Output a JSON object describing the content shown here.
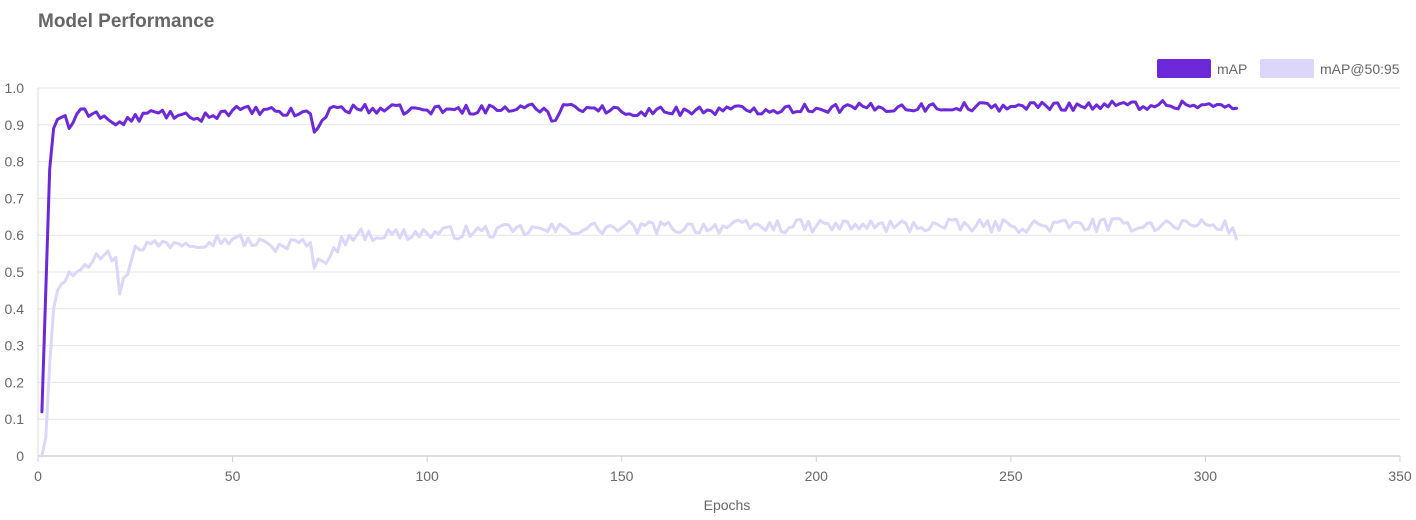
{
  "title": "Model Performance",
  "chart_data": {
    "type": "line",
    "title": "Model Performance",
    "xlabel": "Epochs",
    "ylabel": "",
    "xlim": [
      0,
      350
    ],
    "ylim": [
      0,
      1.0
    ],
    "x_ticks": [
      "0",
      "50",
      "100",
      "150",
      "200",
      "250",
      "300",
      "350"
    ],
    "y_ticks": [
      "0",
      "0.1",
      "0.2",
      "0.3",
      "0.4",
      "0.5",
      "0.6",
      "0.7",
      "0.8",
      "0.9",
      "1.0"
    ],
    "grid": true,
    "legend_position": "top-right",
    "x_start": 1,
    "x_end": 308,
    "series": [
      {
        "name": "mAP",
        "color": "#6d28d9",
        "anchors": [
          [
            1,
            0.12
          ],
          [
            2,
            0.45
          ],
          [
            3,
            0.78
          ],
          [
            4,
            0.89
          ],
          [
            5,
            0.915
          ],
          [
            6,
            0.92
          ],
          [
            7,
            0.925
          ],
          [
            8,
            0.89
          ],
          [
            10,
            0.93
          ],
          [
            15,
            0.935
          ],
          [
            20,
            0.9
          ],
          [
            30,
            0.935
          ],
          [
            40,
            0.915
          ],
          [
            50,
            0.94
          ],
          [
            70,
            0.93
          ],
          [
            71,
            0.88
          ],
          [
            75,
            0.945
          ],
          [
            100,
            0.94
          ],
          [
            130,
            0.945
          ],
          [
            132,
            0.91
          ],
          [
            135,
            0.955
          ],
          [
            150,
            0.935
          ],
          [
            200,
            0.945
          ],
          [
            250,
            0.95
          ],
          [
            295,
            0.955
          ],
          [
            300,
            0.955
          ],
          [
            308,
            0.945
          ]
        ],
        "jitter": 0.013
      },
      {
        "name": "mAP@50:95",
        "color": "#dcd6fb",
        "anchors": [
          [
            1,
            0.0
          ],
          [
            2,
            0.05
          ],
          [
            3,
            0.25
          ],
          [
            4,
            0.4
          ],
          [
            5,
            0.45
          ],
          [
            8,
            0.5
          ],
          [
            12,
            0.52
          ],
          [
            15,
            0.55
          ],
          [
            20,
            0.54
          ],
          [
            21,
            0.44
          ],
          [
            25,
            0.57
          ],
          [
            35,
            0.58
          ],
          [
            50,
            0.59
          ],
          [
            60,
            0.57
          ],
          [
            70,
            0.58
          ],
          [
            71,
            0.51
          ],
          [
            80,
            0.6
          ],
          [
            100,
            0.605
          ],
          [
            130,
            0.615
          ],
          [
            150,
            0.62
          ],
          [
            200,
            0.625
          ],
          [
            250,
            0.625
          ],
          [
            300,
            0.63
          ],
          [
            307,
            0.62
          ],
          [
            308,
            0.59
          ]
        ],
        "jitter": 0.018
      }
    ]
  }
}
